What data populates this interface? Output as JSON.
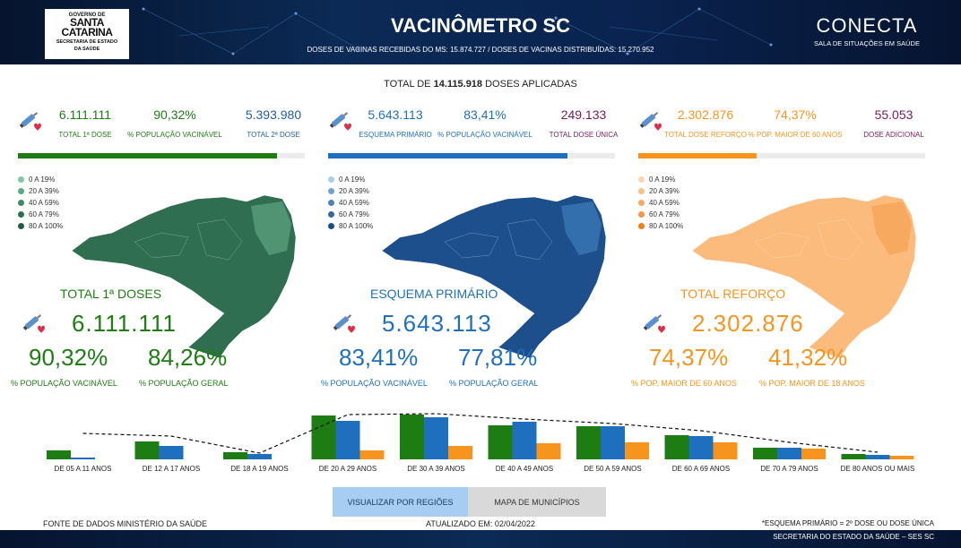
{
  "header": {
    "logo_line1": "GOVERNO DE",
    "logo_line2": "SANTA",
    "logo_line3": "CATARINA",
    "logo_line4": "SECRETARIA DE ESTADO",
    "logo_line5": "DA SAÚDE",
    "title": "VACINÔMETRO SC",
    "subtitle": "DOSES DE VACINAS RECEBIDAS DO MS: 15.874.727   /   DOSES DE VACINAS DISTRIBUÍDAS: 15.270.952",
    "brand": "CONECTA",
    "brand_sub": "SALA DE SITUAÇÕES EM SAÚDE"
  },
  "total": {
    "prefix": "TOTAL DE",
    "value": "14.115.918",
    "suffix": "DOSES APLICADAS"
  },
  "panels": [
    {
      "color": "#1e7d12",
      "accent": "#1e7d12",
      "kpis": [
        {
          "value": "6.111.111",
          "label": "TOTAL 1ª DOSE",
          "color": "#1e7d12"
        },
        {
          "value": "90,32%",
          "label": "% POPULAÇÃO VACINÁVEL",
          "color": "#1e7d12"
        },
        {
          "value": "5.393.980",
          "label": "TOTAL 2ª DOSE",
          "color": "#1f5fa8"
        }
      ],
      "progress": 0.9032,
      "legend": [
        "0 A 19%",
        "20 A 39%",
        "40 A 59%",
        "60 A 79%",
        "80 A 100%"
      ],
      "legend_colors": [
        "#7fc8a9",
        "#5aa886",
        "#3f8a6b",
        "#2f6e53",
        "#235a44"
      ],
      "map_color": "#2f6e50",
      "map_alt": "#5a9d7d",
      "title": "TOTAL 1ª DOSES",
      "big": "6.111.111",
      "pct1": "90,32%",
      "pct1_label": "% POPULAÇÃO VACINÁVEL",
      "pct2": "84,26%",
      "pct2_label": "% POPULAÇÃO GERAL"
    },
    {
      "color": "#1f6fbf",
      "accent": "#1f6fbf",
      "kpis": [
        {
          "value": "5.643.113",
          "label": "ESQUEMA PRIMÁRIO",
          "color": "#1f6fbf"
        },
        {
          "value": "83,41%",
          "label": "% POPULAÇÃO VACINÁVEL",
          "color": "#1f6fbf"
        },
        {
          "value": "249.133",
          "label": "TOTAL DOSE ÚNICA",
          "color": "#7a1a5a"
        }
      ],
      "progress": 0.8341,
      "legend": [
        "0 A 19%",
        "20 A 39%",
        "40 A 59%",
        "60 A 79%",
        "80 A 100%"
      ],
      "legend_colors": [
        "#a9cdef",
        "#6fa3d6",
        "#4a83bd",
        "#2f68a3",
        "#1a4c87"
      ],
      "map_color": "#1d4f8c",
      "map_alt": "#3a75b5",
      "title": "ESQUEMA PRIMÁRIO",
      "big": "5.643.113",
      "pct1": "83,41%",
      "pct1_label": "% POPULAÇÃO VACINÁVEL",
      "pct2": "77,81%",
      "pct2_label": "% POPULAÇÃO GERAL"
    },
    {
      "color": "#f7941d",
      "accent": "#f7941d",
      "kpis": [
        {
          "value": "2.302.876",
          "label": "TOTAL DOSE REFORÇO",
          "color": "#f7941d"
        },
        {
          "value": "74,37%",
          "label": "% POP. MAIOR DE 60 ANOS",
          "color": "#f7941d"
        },
        {
          "value": "55.053",
          "label": "DOSE ADICIONAL",
          "color": "#7a1a5a"
        }
      ],
      "progress": 0.4132,
      "legend": [
        "0 A 19%",
        "20 A 39%",
        "40 A 59%",
        "60 A 79%",
        "80 A 100%"
      ],
      "legend_colors": [
        "#fbd7b0",
        "#f9c08a",
        "#f8a964",
        "#f7963f",
        "#f47d14"
      ],
      "map_color": "#fbbb7c",
      "map_alt": "#f8a559",
      "title": "TOTAL REFORÇO",
      "big": "2.302.876",
      "pct1": "74,37%",
      "pct1_label": "% POP. MAIOR DE 60 ANOS",
      "pct2": "41,32%",
      "pct2_label": "% POP. MAIOR DE 18 ANOS"
    }
  ],
  "chart_data": {
    "type": "bar",
    "categories": [
      "DE 05 A 11 ANOS",
      "DE 12 A 17 ANOS",
      "DE 18 A 19 ANOS",
      "DE 20 A 29 ANOS",
      "DE 30 A 39 ANOS",
      "DE 40 A 49 ANOS",
      "DE 50 A 59 ANOS",
      "DE 60 A 69 ANOS",
      "DE 70 A 79 ANOS",
      "DE 80 ANOS OU MAIS"
    ],
    "series": [
      {
        "values": [
          10,
          20,
          8,
          49,
          50,
          38,
          37,
          27,
          13,
          6
        ],
        "color": "#1e7d12"
      },
      {
        "values": [
          2,
          15,
          6,
          43,
          47,
          42,
          37,
          26,
          13,
          5
        ],
        "color": "#1f6fbf"
      },
      {
        "values": [
          0,
          0,
          0,
          10,
          15,
          18,
          19,
          19,
          12,
          4
        ],
        "color": "#f7941d"
      }
    ],
    "trend": [
      29,
      26,
      7,
      50,
      51,
      45,
      40,
      32,
      19,
      8
    ]
  },
  "buttons": {
    "regions": "VISUALIZAR POR REGIÕES",
    "municipalities": "MAPA DE MUNICÍPIOS"
  },
  "footer": {
    "source": "FONTE DE DADOS MINISTÉRIO DA SAÚDE",
    "updated": "ATUALIZADO EM: 02/04/2022",
    "note": "*ESQUEMA PRIMÁRIO = 2º DOSE OU DOSE ÚNICA",
    "bottom": "SECRETARIA DO ESTADO DA SAÚDE – SES SC"
  }
}
